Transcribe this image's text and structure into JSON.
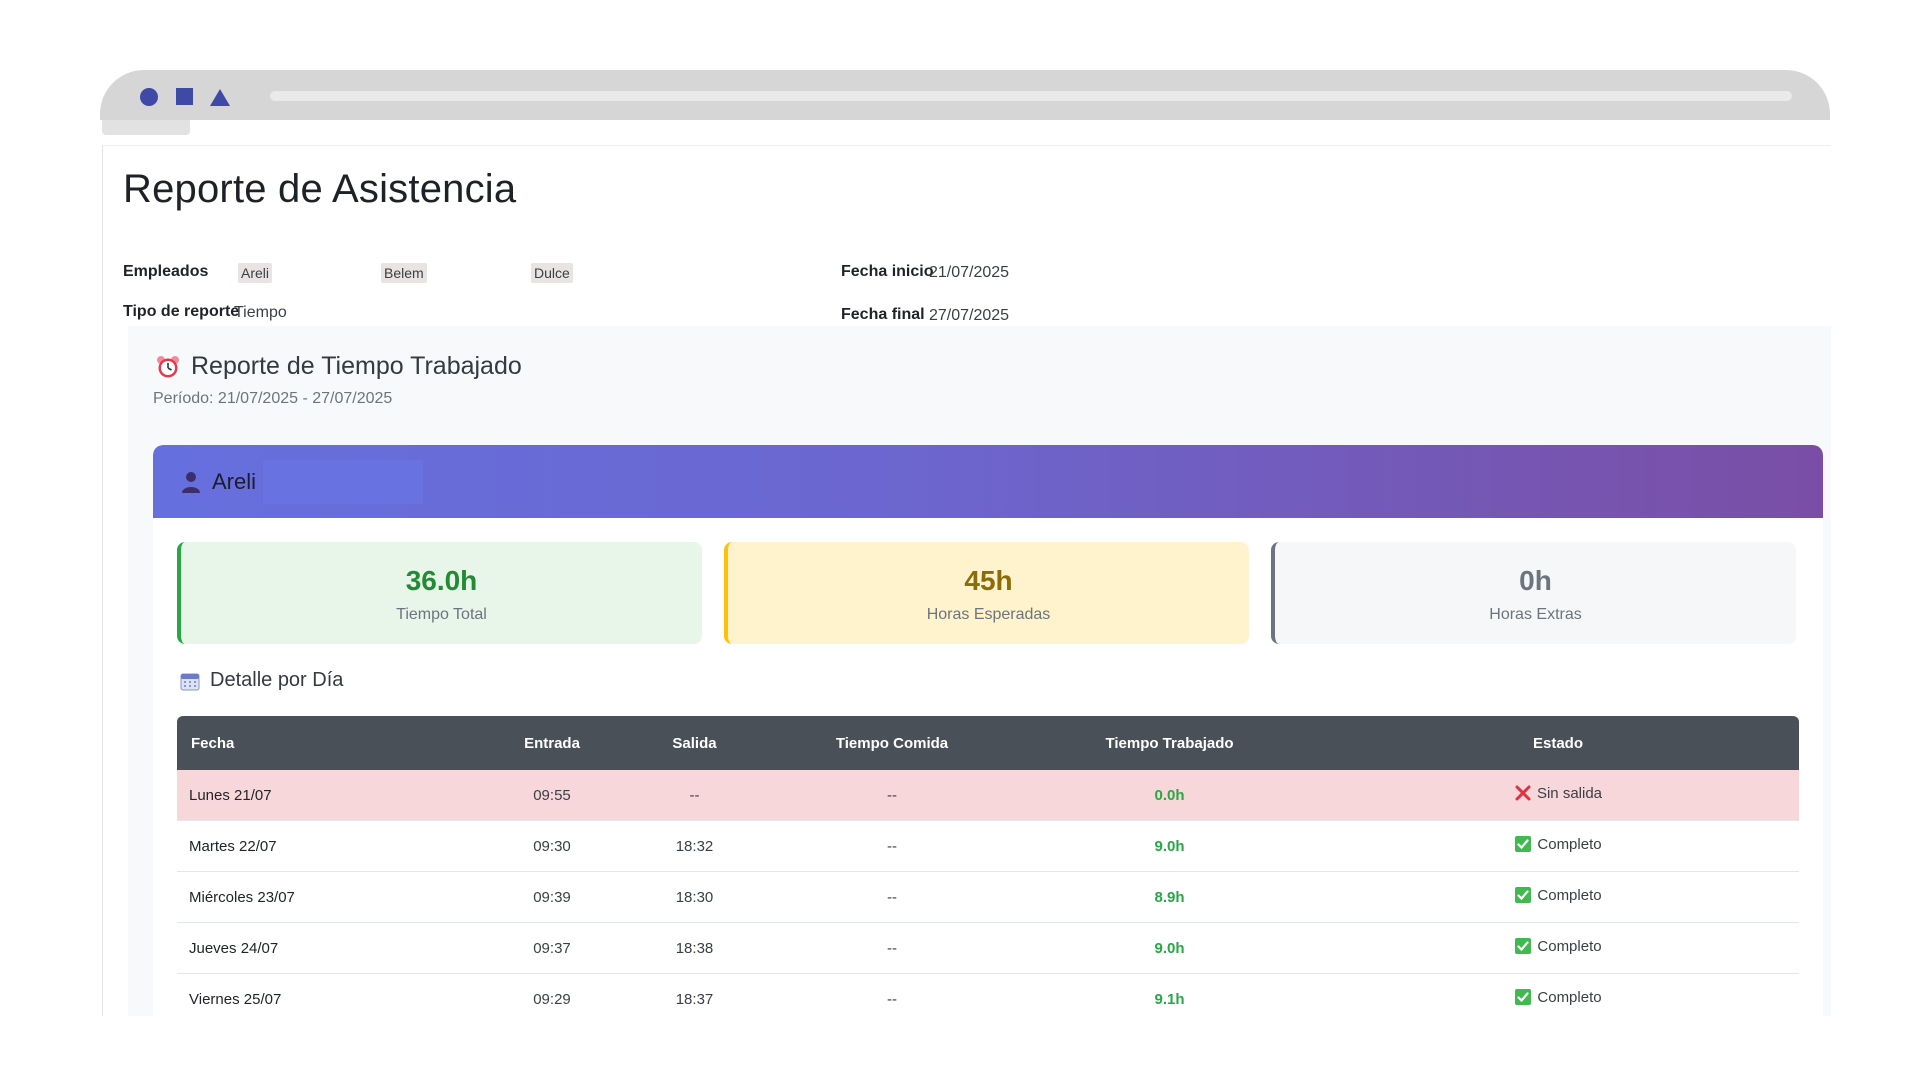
{
  "window": {
    "controls": [
      "circle-icon",
      "square-icon",
      "triangle-icon"
    ]
  },
  "report": {
    "title": "Reporte de Asistencia",
    "employees_label": "Empleados",
    "employees": [
      "Areli",
      "Belem",
      "Dulce"
    ],
    "type_label": "Tipo de reporte",
    "type_value": "Tiempo",
    "start_label": "Fecha inicio",
    "start_value": "21/07/2025",
    "end_label": "Fecha final",
    "end_value": "27/07/2025"
  },
  "time_report": {
    "icon": "alarm-clock-icon",
    "title": "Reporte de Tiempo Trabajado",
    "period": "Período: 21/07/2025 - 27/07/2025",
    "employee": {
      "icon": "user-icon",
      "name": "Areli"
    },
    "stats": {
      "total_value": "36.0h",
      "total_label": "Tiempo Total",
      "expected_value": "45h",
      "expected_label": "Horas Esperadas",
      "extra_value": "0h",
      "extra_label": "Horas Extras"
    },
    "detail_icon": "calendar-icon",
    "detail_title": "Detalle por Día",
    "table": {
      "headers": [
        "Fecha",
        "Entrada",
        "Salida",
        "Tiempo Comida",
        "Tiempo Trabajado",
        "Estado"
      ],
      "rows": [
        {
          "fecha": "Lunes 21/07",
          "entrada": "09:55",
          "salida": "--",
          "comida": "--",
          "trabajado": "0.0h",
          "estado": "Sin salida",
          "estado_icon": "x-mark-icon"
        },
        {
          "fecha": "Martes 22/07",
          "entrada": "09:30",
          "salida": "18:32",
          "comida": "--",
          "trabajado": "9.0h",
          "estado": "Completo",
          "estado_icon": "check-box-icon"
        },
        {
          "fecha": "Miércoles 23/07",
          "entrada": "09:39",
          "salida": "18:30",
          "comida": "--",
          "trabajado": "8.9h",
          "estado": "Completo",
          "estado_icon": "check-box-icon"
        },
        {
          "fecha": "Jueves 24/07",
          "entrada": "09:37",
          "salida": "18:38",
          "comida": "--",
          "trabajado": "9.0h",
          "estado": "Completo",
          "estado_icon": "check-box-icon"
        },
        {
          "fecha": "Viernes 25/07",
          "entrada": "09:29",
          "salida": "18:37",
          "comida": "--",
          "trabajado": "9.1h",
          "estado": "Completo",
          "estado_icon": "check-box-icon"
        }
      ]
    }
  },
  "colors": {
    "accent_gradient_start": "#6570de",
    "accent_gradient_end": "#7a4ea5",
    "success": "#28a745",
    "warning": "#ffc107",
    "danger": "#e0313f",
    "table_header": "#495057"
  }
}
